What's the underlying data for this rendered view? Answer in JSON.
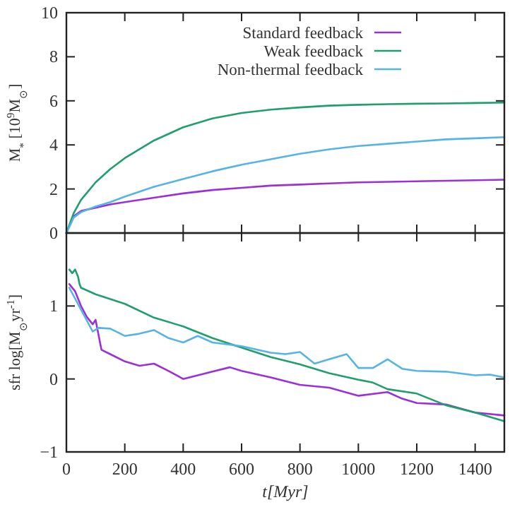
{
  "chart_data": [
    {
      "type": "line",
      "ylabel": "M$_{*}$ [10$^{9}$M$_{⊙}$]",
      "xlim": [
        0,
        1500
      ],
      "xticks": [
        0,
        200,
        400,
        600,
        800,
        1000,
        1200,
        1400
      ],
      "ylim": [
        0,
        10
      ],
      "yticks": [
        0,
        2,
        4,
        6,
        8,
        10
      ],
      "tick_labels": "y",
      "legend": "top",
      "series": [
        {
          "name": "Standard feedback",
          "color": "#9b30d9",
          "x": [
            0,
            25,
            50,
            100,
            150,
            200,
            300,
            400,
            500,
            600,
            700,
            800,
            900,
            1000,
            1200,
            1500
          ],
          "values": [
            0,
            0.76,
            1.0,
            1.15,
            1.3,
            1.4,
            1.6,
            1.8,
            1.95,
            2.05,
            2.15,
            2.2,
            2.25,
            2.3,
            2.35,
            2.42
          ]
        },
        {
          "name": "Weak feedback",
          "color": "#1f9e6e",
          "x": [
            0,
            25,
            50,
            100,
            150,
            200,
            300,
            400,
            500,
            600,
            700,
            800,
            900,
            1000,
            1100,
            1200,
            1300,
            1400,
            1500
          ],
          "values": [
            0,
            0.9,
            1.5,
            2.3,
            2.9,
            3.4,
            4.2,
            4.8,
            5.2,
            5.45,
            5.6,
            5.7,
            5.78,
            5.82,
            5.85,
            5.87,
            5.88,
            5.9,
            5.92
          ]
        },
        {
          "name": "Non-thermal feedback",
          "color": "#56b4e4",
          "x": [
            0,
            25,
            50,
            100,
            150,
            200,
            300,
            400,
            500,
            600,
            700,
            800,
            900,
            1000,
            1100,
            1200,
            1300,
            1400,
            1500
          ],
          "values": [
            0,
            0.7,
            0.95,
            1.2,
            1.4,
            1.65,
            2.1,
            2.45,
            2.8,
            3.1,
            3.35,
            3.6,
            3.8,
            3.95,
            4.05,
            4.15,
            4.25,
            4.3,
            4.35
          ]
        }
      ]
    },
    {
      "type": "line",
      "xlabel": "t[Myr]",
      "ylabel": "sfr log[M$_{⊙}$yr$^{-1}$]",
      "xlim": [
        0,
        1500
      ],
      "xticks": [
        0,
        200,
        400,
        600,
        800,
        1000,
        1200,
        1400
      ],
      "ylim": [
        -1,
        2
      ],
      "yticks": [
        -1,
        0,
        1,
        {
          "value": 2,
          "label": null
        }
      ],
      "series": [
        {
          "color": "#9b30d9",
          "x": [
            10,
            30,
            50,
            70,
            90,
            100,
            120,
            150,
            200,
            250,
            300,
            350,
            400,
            450,
            500,
            560,
            600,
            700,
            800,
            900,
            1000,
            1100,
            1150,
            1200,
            1300,
            1400,
            1500
          ],
          "values": [
            1.3,
            1.2,
            1.0,
            0.85,
            0.75,
            0.81,
            0.4,
            0.34,
            0.24,
            0.18,
            0.21,
            0.11,
            0.0,
            0.05,
            0.1,
            0.16,
            0.11,
            0.02,
            -0.08,
            -0.12,
            -0.23,
            -0.18,
            -0.27,
            -0.33,
            -0.35,
            -0.46,
            -0.5
          ]
        },
        {
          "color": "#1f9e6e",
          "x": [
            10,
            20,
            30,
            40,
            45,
            50,
            100,
            200,
            300,
            400,
            500,
            600,
            700,
            800,
            900,
            1000,
            1050,
            1100,
            1200,
            1300,
            1400,
            1500
          ],
          "values": [
            1.5,
            1.45,
            1.5,
            1.4,
            1.3,
            1.25,
            1.16,
            1.03,
            0.84,
            0.72,
            0.56,
            0.43,
            0.3,
            0.2,
            0.08,
            -0.01,
            -0.05,
            -0.14,
            -0.2,
            -0.36,
            -0.46,
            -0.58
          ]
        },
        {
          "color": "#56b4e4",
          "x": [
            10,
            30,
            50,
            70,
            90,
            110,
            150,
            200,
            250,
            300,
            350,
            400,
            450,
            500,
            600,
            700,
            750,
            800,
            850,
            900,
            960,
            1000,
            1050,
            1100,
            1150,
            1200,
            1300,
            1400,
            1450,
            1500
          ],
          "values": [
            1.25,
            1.1,
            0.95,
            0.8,
            0.65,
            0.7,
            0.69,
            0.59,
            0.62,
            0.67,
            0.56,
            0.5,
            0.59,
            0.5,
            0.45,
            0.36,
            0.34,
            0.37,
            0.21,
            0.27,
            0.34,
            0.15,
            0.15,
            0.27,
            0.14,
            0.11,
            0.1,
            0.05,
            0.06,
            0.02
          ]
        }
      ]
    }
  ]
}
